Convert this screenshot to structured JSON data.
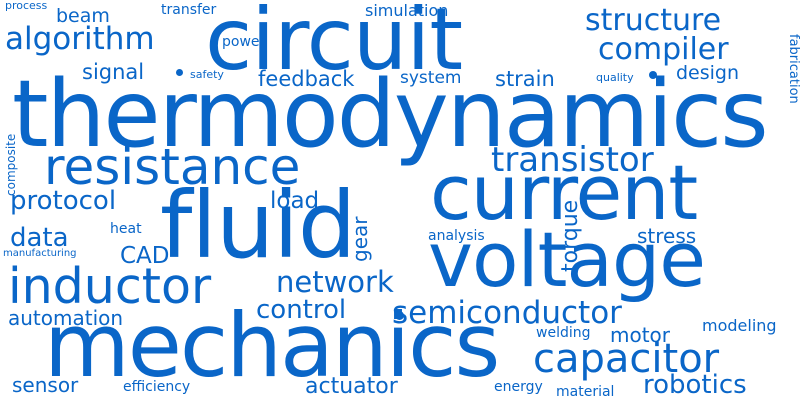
{
  "colors": {
    "background": "#ffffff",
    "text": "#0a66c8"
  },
  "words": {
    "thermodynamics": "thermodynamics",
    "circuit": "circuit",
    "current": "current",
    "fluid": "fluid",
    "voltage": "voltage",
    "mechanics": "mechanics",
    "resistance": "resistance",
    "inductor": "inductor",
    "capacitor": "capacitor",
    "transistor": "transistor",
    "semiconductor": "semiconductor",
    "algorithm": "algorithm",
    "structure": "structure",
    "compiler": "compiler",
    "network": "network",
    "robotics": "robotics",
    "control": "control",
    "protocol": "protocol",
    "data": "data",
    "feedback": "feedback",
    "signal": "signal",
    "strain": "strain",
    "system": "system",
    "design": "design",
    "simulation": "simulation",
    "beam": "beam",
    "stress": "stress",
    "torque": "torque",
    "gear": "gear",
    "load": "load",
    "cad": "CAD",
    "automation": "automation",
    "heat": "heat",
    "analysis": "analysis",
    "motor": "motor",
    "modeling": "modeling",
    "welding": "welding",
    "sensor": "sensor",
    "actuator": "actuator",
    "efficiency": "efficiency",
    "energy": "energy",
    "material": "material",
    "power": "power",
    "transfer": "transfer",
    "process": "process",
    "safety": "safety",
    "quality": "quality",
    "fabrication": "fabrication",
    "composite": "composite",
    "manufacturing": "manufacturing"
  }
}
